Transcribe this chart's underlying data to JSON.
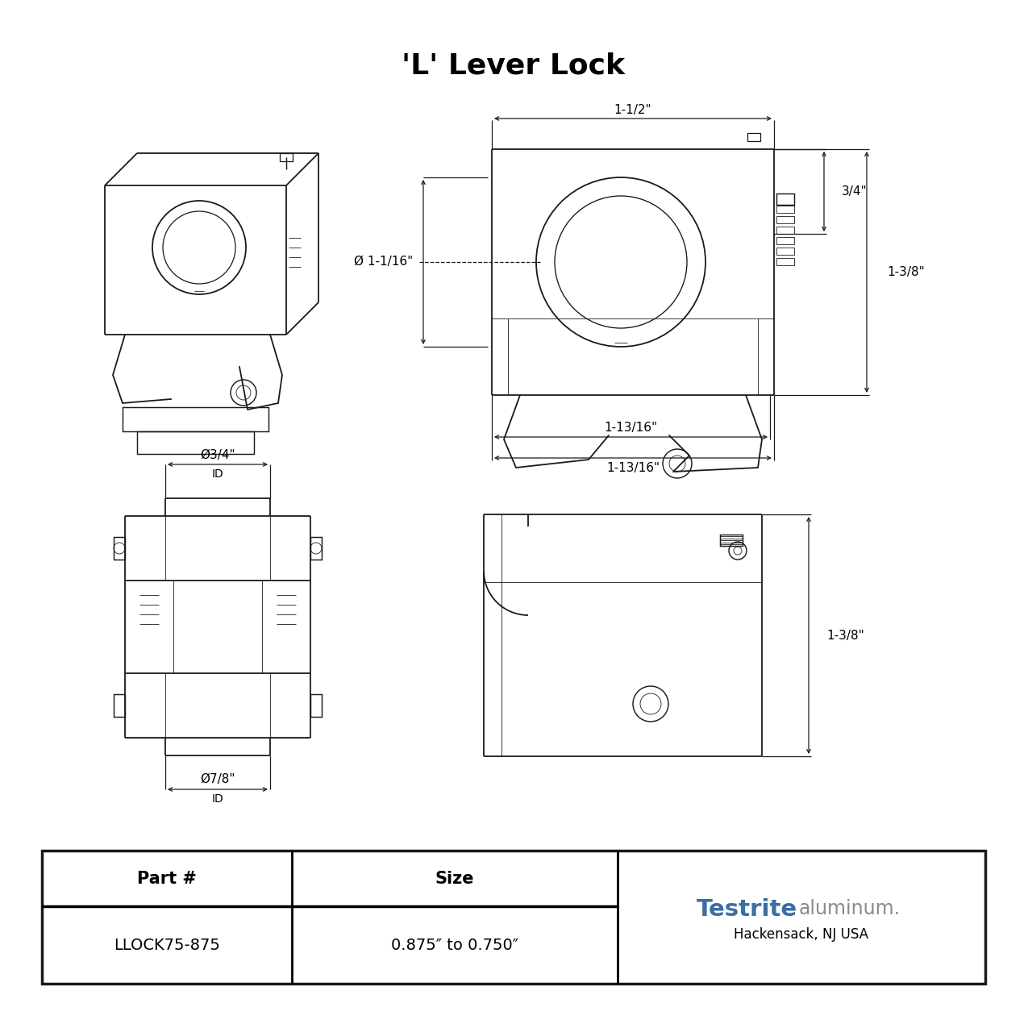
{
  "title": "'L' Lever Lock",
  "background_color": "#ffffff",
  "line_color": "#1a1a1a",
  "dim_color": "#1a1a1a",
  "table": {
    "headers": [
      "Part #",
      "Size"
    ],
    "row": [
      "LLOCK75-875",
      "0.875″ to 0.750″"
    ],
    "company_name_bold": "Testrite",
    "company_name_light": "aluminum.",
    "company_sub": "Hackensack, NJ USA",
    "testrite_color": "#3a6ea5",
    "aluminum_color": "#8a8a8a"
  },
  "dims_top_right": {
    "width_top": "1-1/2\"",
    "diameter": "Ø 1-1/16\"",
    "height_top": "3/4\"",
    "height_total": "1-3/8\"",
    "width_bot1": "1-13/16\"",
    "width_bot2": "1-13/16\""
  },
  "dims_bottom_left": {
    "dia_top": "Ø3/4\"",
    "id_top": "ID",
    "dia_bot": "Ø7/8\"",
    "id_bot": "ID"
  },
  "dims_bottom_right": {
    "height": "1-3/8\""
  }
}
